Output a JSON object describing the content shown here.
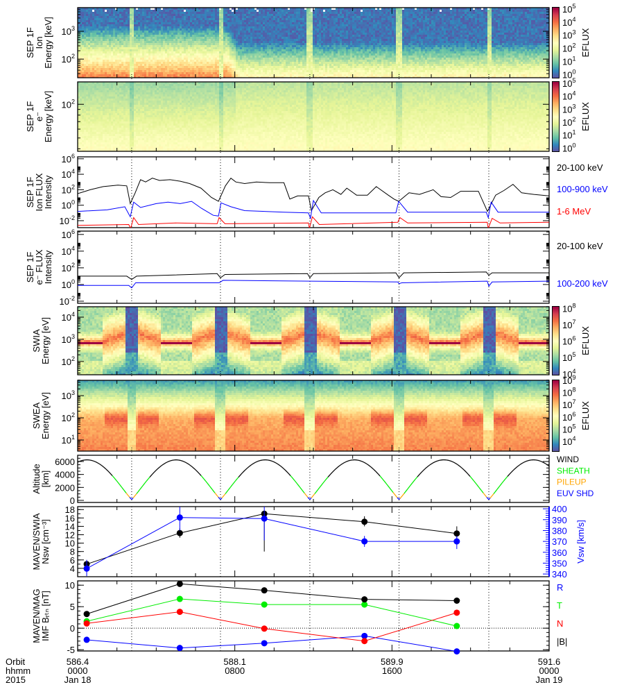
{
  "time_axis": {
    "row_labels": [
      "Orbit",
      "hhmm",
      "2015"
    ],
    "ticks": [
      {
        "hours": 0,
        "orbit": "586.4",
        "hhmm": "0000",
        "date": "Jan 18"
      },
      {
        "hours": 8,
        "orbit": "588.1",
        "hhmm": "0800",
        "date": ""
      },
      {
        "hours": 16,
        "orbit": "589.9",
        "hhmm": "1600",
        "date": ""
      },
      {
        "hours": 24,
        "orbit": "591.6",
        "hhmm": "0000",
        "date": "Jan 19"
      }
    ],
    "xlim_hours": [
      0,
      24
    ],
    "periapsis_hours": [
      2.75,
      7.27,
      11.82,
      16.36,
      20.93
    ]
  },
  "colors": {
    "spectral": [
      "#5e4fa2",
      "#3288bd",
      "#66c2a5",
      "#abdda4",
      "#e6f598",
      "#ffffbf",
      "#fee08b",
      "#fdae61",
      "#f46d43",
      "#d53e4f",
      "#9e0142"
    ]
  },
  "chart_data": [
    {
      "id": "sep_ion_spec",
      "type": "heatmap",
      "ylabel": [
        "SEP 1F",
        "Ion",
        "Energy [keV]"
      ],
      "ylim_log10": [
        1.33,
        3.85
      ],
      "yticks_log10": [
        2,
        3
      ],
      "zlabel": "EFLUX",
      "zlim_log10": [
        -0.25,
        5.1
      ],
      "zticks_log10": [
        0,
        1,
        2,
        3,
        4,
        5
      ]
    },
    {
      "id": "sep_e_spec",
      "type": "heatmap",
      "ylabel": [
        "SEP 1F",
        "e⁻",
        "Energy [keV]"
      ],
      "ylim_log10": [
        1.58,
        2.2
      ],
      "yticks_log10": [
        2
      ],
      "zlabel": "EFLUX",
      "zlim_log10": [
        -0.25,
        5.1
      ],
      "zticks_log10": [
        0,
        1,
        2,
        3,
        4,
        5
      ]
    },
    {
      "id": "sep_ion_flux",
      "type": "line",
      "ylabel": [
        "SEP 1F",
        "Ion FLUX",
        "Intensity"
      ],
      "ylim_log10": [
        -2.9,
        6.25
      ],
      "yticks_log10": [
        -2,
        0,
        2,
        4,
        6
      ],
      "series": [
        {
          "name": "20-100 keV",
          "color": "#000000",
          "points": [
            [
              0,
              1.5
            ],
            [
              0.64,
              2.0
            ],
            [
              1.3,
              2.4
            ],
            [
              2.05,
              2.6
            ],
            [
              2.5,
              2.5
            ],
            [
              2.68,
              0.2
            ],
            [
              2.93,
              1.6
            ],
            [
              3.2,
              3.3
            ],
            [
              3.46,
              3.0
            ],
            [
              3.8,
              3.5
            ],
            [
              4.17,
              3.2
            ],
            [
              4.7,
              3.3
            ],
            [
              5.22,
              3.1
            ],
            [
              5.7,
              2.8
            ],
            [
              6.28,
              2.2
            ],
            [
              6.81,
              1.0
            ],
            [
              7.17,
              0.5
            ],
            [
              7.52,
              2.5
            ],
            [
              7.8,
              3.5
            ],
            [
              8.05,
              3.0
            ],
            [
              8.5,
              2.8
            ],
            [
              9.1,
              3.0
            ],
            [
              9.8,
              2.9
            ],
            [
              10.5,
              2.9
            ],
            [
              10.8,
              0.8
            ],
            [
              11.2,
              1.2
            ],
            [
              11.75,
              1.2
            ],
            [
              11.9,
              -0.7
            ],
            [
              12.28,
              1.0
            ],
            [
              12.6,
              1.6
            ],
            [
              12.99,
              2.0
            ],
            [
              13.4,
              1.4
            ],
            [
              13.7,
              2.2
            ],
            [
              14.2,
              1.3
            ],
            [
              14.75,
              1.3
            ],
            [
              15.2,
              2.4
            ],
            [
              15.81,
              1.3
            ],
            [
              16.1,
              0.8
            ],
            [
              16.34,
              0.5
            ],
            [
              16.87,
              1.6
            ],
            [
              17.4,
              1.4
            ],
            [
              18.1,
              2.0
            ],
            [
              18.5,
              1.1
            ],
            [
              18.99,
              1.0
            ],
            [
              19.5,
              1.8
            ],
            [
              20.4,
              1.8
            ],
            [
              20.86,
              -0.8
            ],
            [
              21.28,
              1.3
            ],
            [
              21.7,
              1.9
            ],
            [
              22.16,
              2.7
            ],
            [
              22.6,
              1.6
            ],
            [
              23.22,
              1.4
            ],
            [
              24,
              1.2
            ]
          ]
        },
        {
          "name": "100-900 keV",
          "color": "#0000ff",
          "points": [
            [
              0,
              -0.8
            ],
            [
              1.5,
              -0.6
            ],
            [
              2.4,
              -0.2
            ],
            [
              2.68,
              -1.5
            ],
            [
              2.85,
              0.4
            ],
            [
              3.2,
              -0.3
            ],
            [
              4.0,
              0.2
            ],
            [
              4.6,
              0.4
            ],
            [
              5.22,
              0.2
            ],
            [
              5.8,
              0.5
            ],
            [
              6.3,
              -0.4
            ],
            [
              6.9,
              -1.3
            ],
            [
              7.17,
              -1.4
            ],
            [
              7.3,
              0.3
            ],
            [
              7.8,
              -0.2
            ],
            [
              8.5,
              -0.7
            ],
            [
              10.5,
              -0.9
            ],
            [
              11.75,
              -1.0
            ],
            [
              11.85,
              -1.7
            ],
            [
              12.0,
              0.6
            ],
            [
              12.4,
              -1.0
            ],
            [
              16.2,
              -1.0
            ],
            [
              16.34,
              0.5
            ],
            [
              16.8,
              -0.9
            ],
            [
              20.8,
              -0.9
            ],
            [
              20.9,
              -1.6
            ],
            [
              21.05,
              0.4
            ],
            [
              21.4,
              -0.9
            ],
            [
              24,
              -0.9
            ]
          ]
        },
        {
          "name": "1-6 MeV",
          "color": "#ff0000",
          "points": [
            [
              0,
              -2.6
            ],
            [
              2.6,
              -2.5
            ],
            [
              2.7,
              -3.0
            ],
            [
              2.85,
              -1.6
            ],
            [
              3.1,
              -2.5
            ],
            [
              5.0,
              -2.3
            ],
            [
              7.1,
              -2.4
            ],
            [
              7.2,
              -1.6
            ],
            [
              7.5,
              -2.4
            ],
            [
              11.75,
              -2.3
            ],
            [
              11.8,
              -3.0
            ],
            [
              11.95,
              -1.5
            ],
            [
              12.3,
              -2.5
            ],
            [
              16.3,
              -2.2
            ],
            [
              16.4,
              -1.6
            ],
            [
              16.8,
              -2.3
            ],
            [
              20.85,
              -2.2
            ],
            [
              20.9,
              -3.0
            ],
            [
              21.1,
              -1.7
            ],
            [
              21.5,
              -2.3
            ],
            [
              24,
              -2.2
            ]
          ]
        }
      ]
    },
    {
      "id": "sep_e_flux",
      "type": "line",
      "ylabel": [
        "SEP 1F",
        "e⁻ FLUX",
        "Intensity"
      ],
      "ylim_log10": [
        -2.25,
        6.4
      ],
      "yticks_log10": [
        -2,
        0,
        2,
        4,
        6
      ],
      "series": [
        {
          "name": "20-100 keV",
          "color": "#000000",
          "points": [
            [
              0,
              1.0
            ],
            [
              2.5,
              1.0
            ],
            [
              2.75,
              0.6
            ],
            [
              3.0,
              1.0
            ],
            [
              7.1,
              1.3
            ],
            [
              7.27,
              0.8
            ],
            [
              7.5,
              1.2
            ],
            [
              11.7,
              1.3
            ],
            [
              11.82,
              0.8
            ],
            [
              12.0,
              1.3
            ],
            [
              16.2,
              1.4
            ],
            [
              16.36,
              0.8
            ],
            [
              16.6,
              1.4
            ],
            [
              20.8,
              1.5
            ],
            [
              20.93,
              1.1
            ],
            [
              21.1,
              1.4
            ],
            [
              24,
              1.4
            ]
          ]
        },
        {
          "name": "100-200 keV",
          "color": "#0000ff",
          "points": [
            [
              0,
              -0.1
            ],
            [
              2.6,
              -0.1
            ],
            [
              2.75,
              -0.4
            ],
            [
              2.95,
              0.2
            ],
            [
              7.2,
              0.2
            ],
            [
              7.27,
              0.3
            ],
            [
              7.4,
              0.5
            ],
            [
              11.82,
              0.4
            ],
            [
              16.3,
              0.3
            ],
            [
              16.36,
              0.1
            ],
            [
              16.5,
              0.2
            ],
            [
              20.85,
              0.4
            ],
            [
              20.93,
              -0.2
            ],
            [
              21.1,
              0.3
            ],
            [
              24,
              0.4
            ]
          ]
        }
      ]
    },
    {
      "id": "swia_spec",
      "type": "heatmap",
      "ylabel": [
        "SWIA",
        "Energy [eV]"
      ],
      "ylim_log10": [
        1.4,
        4.47
      ],
      "yticks_log10": [
        2,
        3,
        4
      ],
      "zlabel": "EFLUX",
      "zlim_log10": [
        3.95,
        8.1
      ],
      "zticks_log10": [
        4,
        5,
        6,
        7,
        8
      ]
    },
    {
      "id": "swea_spec",
      "type": "heatmap",
      "ylabel": [
        "SWEA",
        "Energy [eV]"
      ],
      "ylim_log10": [
        0.5,
        3.69
      ],
      "yticks_log10": [
        1,
        2,
        3
      ],
      "zlabel": "EFLUX",
      "zlim_log10": [
        3.2,
        9.0
      ],
      "zticks_log10": [
        4,
        5,
        6,
        7,
        8,
        9
      ]
    },
    {
      "id": "altitude",
      "type": "line",
      "ylabel": [
        "Altitude",
        "[km]"
      ],
      "ylim": [
        -320,
        6960
      ],
      "yticks": [
        0,
        2000,
        4000,
        6000
      ],
      "apoapsis_km": 6250,
      "periapsis_km": 150,
      "regions": [
        {
          "name": "WIND",
          "color": "#000000",
          "min_km": 3700
        },
        {
          "name": "SHEATH",
          "color": "#00ee00",
          "min_km": 1100
        },
        {
          "name": "PILEUP",
          "color": "#ffa500",
          "min_km": 400
        },
        {
          "name": "EUV SHD",
          "color": "#0000ff",
          "min_km": -1000
        }
      ]
    },
    {
      "id": "swia_nsw_vsw",
      "type": "scatter",
      "ylabel": [
        "MAVEN/SWIA",
        "Nsw [cm⁻³]"
      ],
      "ylim": [
        2.0,
        18.7
      ],
      "yticks": [
        4,
        6,
        8,
        10,
        12,
        14,
        16,
        18
      ],
      "y2label": "Vsw [km/s]",
      "y2lim": [
        337.5,
        402
      ],
      "y2ticks": [
        340,
        350,
        360,
        370,
        380,
        390,
        400
      ],
      "series": [
        {
          "name": "Nsw",
          "color": "#000000",
          "axis": "left",
          "x": [
            0.46,
            5.2,
            9.5,
            14.6,
            19.3
          ],
          "y": [
            5.0,
            12.4,
            17.0,
            15.1,
            12.3
          ],
          "err_lo": [
            4.3,
            11.3,
            8.0,
            14.0,
            10.6
          ],
          "err_hi": [
            5.6,
            13.5,
            17.5,
            16.4,
            14.0
          ]
        },
        {
          "name": "Vsw",
          "color": "#0000ff",
          "axis": "right",
          "x": [
            0.46,
            5.2,
            9.5,
            14.6,
            19.3
          ],
          "y": [
            345,
            392,
            391,
            370,
            370
          ],
          "err_lo": [
            338,
            380,
            371,
            365,
            363
          ],
          "err_hi": [
            353,
            402,
            402,
            375,
            375
          ]
        }
      ]
    },
    {
      "id": "mag_imf",
      "type": "scatter",
      "ylabel": [
        "MAVEN/MAG",
        "IMF Bᵣₜₙ [nT]"
      ],
      "ylim": [
        -5.3,
        11
      ],
      "yticks": [
        -5,
        0,
        5,
        10
      ],
      "series": [
        {
          "name": "R",
          "color": "#0000ff",
          "x": [
            0.46,
            5.2,
            9.5,
            14.6,
            19.3
          ],
          "y": [
            -2.7,
            -4.6,
            -3.5,
            -1.8,
            -5.4
          ]
        },
        {
          "name": "T",
          "color": "#00ee00",
          "x": [
            0.46,
            5.2,
            9.5,
            14.6,
            19.3
          ],
          "y": [
            1.6,
            6.8,
            5.5,
            5.5,
            0.5
          ]
        },
        {
          "name": "N",
          "color": "#ff0000",
          "x": [
            0.46,
            5.2,
            9.5,
            14.6,
            19.3
          ],
          "y": [
            1.1,
            3.8,
            -0.1,
            -3.0,
            3.6
          ]
        },
        {
          "name": "|B|",
          "color": "#000000",
          "x": [
            0.46,
            5.2,
            9.5,
            14.6,
            19.3
          ],
          "y": [
            3.3,
            10.3,
            8.8,
            6.7,
            6.4
          ]
        }
      ]
    }
  ]
}
